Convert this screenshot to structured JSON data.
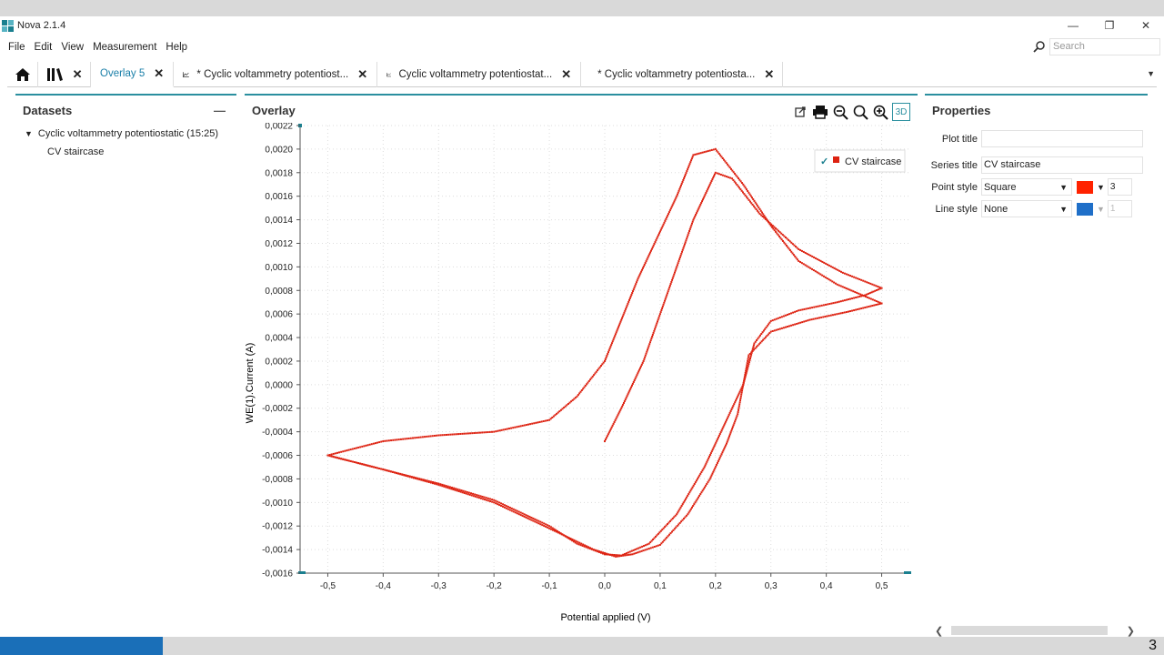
{
  "app": {
    "title": "Nova 2.1.4"
  },
  "window_controls": {
    "minimize": "—",
    "restore": "❐",
    "close": "✕"
  },
  "menu": [
    "File",
    "Edit",
    "View",
    "Measurement",
    "Help"
  ],
  "search": {
    "placeholder": "Search"
  },
  "tabs": [
    {
      "label": "Overlay 5",
      "icon": "none",
      "active": true
    },
    {
      "label": "* Cyclic voltammetry potentiost...",
      "icon": "line-chart-icon"
    },
    {
      "label": "Cyclic voltammetry potentiostat...",
      "icon": "line-chart-icon"
    },
    {
      "label": "* Cyclic voltammetry potentiosta...",
      "icon": "grid-icon"
    }
  ],
  "datasets": {
    "title": "Datasets",
    "root": "Cyclic voltammetry potentiostatic (15:25)",
    "child": "CV staircase"
  },
  "overlay": {
    "title": "Overlay",
    "three_d": "3D"
  },
  "chart_data": {
    "type": "scatter",
    "xlabel": "Potential applied (V)",
    "ylabel": "WE(1).Current (A)",
    "xlim": [
      -0.55,
      0.55
    ],
    "ylim": [
      -0.0016,
      0.0022
    ],
    "xticks": [
      "-0,5",
      "-0,4",
      "-0,3",
      "-0,2",
      "-0,1",
      "0,0",
      "0,1",
      "0,2",
      "0,3",
      "0,4",
      "0,5"
    ],
    "xtick_values": [
      -0.5,
      -0.4,
      -0.3,
      -0.2,
      -0.1,
      0.0,
      0.1,
      0.2,
      0.3,
      0.4,
      0.5
    ],
    "yticks": [
      "0,0022",
      "0,0020",
      "0,0018",
      "0,0016",
      "0,0014",
      "0,0012",
      "0,0010",
      "0,0008",
      "0,0006",
      "0,0004",
      "0,0002",
      "0,0000",
      "-0,0002",
      "-0,0004",
      "-0,0006",
      "-0,0008",
      "-0,0010",
      "-0,0012",
      "-0,0014",
      "-0,0016"
    ],
    "ytick_values": [
      0.0022,
      0.002,
      0.0018,
      0.0016,
      0.0014,
      0.0012,
      0.001,
      0.0008,
      0.0006,
      0.0004,
      0.0002,
      0.0,
      -0.0002,
      -0.0004,
      -0.0006,
      -0.0008,
      -0.001,
      -0.0012,
      -0.0014,
      -0.0016
    ],
    "grid": true,
    "legend": "top-right",
    "series": [
      {
        "name": "CV staircase",
        "color": "#dd2211",
        "x": [
          0.0,
          0.03,
          0.07,
          0.1,
          0.13,
          0.16,
          0.18,
          0.2,
          0.23,
          0.28,
          0.35,
          0.43,
          0.5,
          0.47,
          0.42,
          0.35,
          0.3,
          0.27,
          0.25,
          0.22,
          0.18,
          0.13,
          0.08,
          0.03,
          0.0,
          -0.05,
          -0.1,
          -0.2,
          -0.3,
          -0.4,
          -0.5,
          -0.4,
          -0.3,
          -0.2,
          -0.1,
          -0.05,
          0.0,
          0.03,
          0.06,
          0.1,
          0.13,
          0.16,
          0.2,
          0.25,
          0.3,
          0.35,
          0.42,
          0.5,
          0.44,
          0.37,
          0.3,
          0.26,
          0.24,
          0.22,
          0.19,
          0.15,
          0.1,
          0.05,
          0.02,
          -0.02,
          -0.1,
          -0.2,
          -0.3,
          -0.4,
          -0.5
        ],
        "y": [
          -0.00048,
          -0.0002,
          0.0002,
          0.0006,
          0.001,
          0.0014,
          0.0016,
          0.0018,
          0.00175,
          0.00145,
          0.00115,
          0.00095,
          0.00082,
          0.00076,
          0.0007,
          0.00063,
          0.00054,
          0.00035,
          0.0,
          -0.0003,
          -0.0007,
          -0.0011,
          -0.00135,
          -0.00145,
          -0.00144,
          -0.00135,
          -0.0012,
          -0.00098,
          -0.00084,
          -0.00072,
          -0.0006,
          -0.00048,
          -0.00043,
          -0.0004,
          -0.0003,
          -0.0001,
          0.0002,
          0.00055,
          0.0009,
          0.0013,
          0.0016,
          0.00195,
          0.002,
          0.0017,
          0.00135,
          0.00105,
          0.00085,
          0.00069,
          0.00062,
          0.00055,
          0.00045,
          0.00025,
          -0.00025,
          -0.0005,
          -0.0008,
          -0.0011,
          -0.00136,
          -0.00144,
          -0.00146,
          -0.0014,
          -0.00122,
          -0.001,
          -0.00085,
          -0.00072,
          -0.0006
        ]
      }
    ]
  },
  "properties": {
    "title": "Properties",
    "plot_title_label": "Plot title",
    "plot_title_value": "",
    "series_title_label": "Series title",
    "series_title_value": "CV staircase",
    "point_style_label": "Point style",
    "point_style_value": "Square",
    "point_color": "#ff2200",
    "point_size": "3",
    "line_style_label": "Line style",
    "line_style_value": "None",
    "line_color": "#1f6fc8",
    "line_width": "1"
  },
  "status": {
    "progress_percent": 14,
    "right_text": "3"
  }
}
